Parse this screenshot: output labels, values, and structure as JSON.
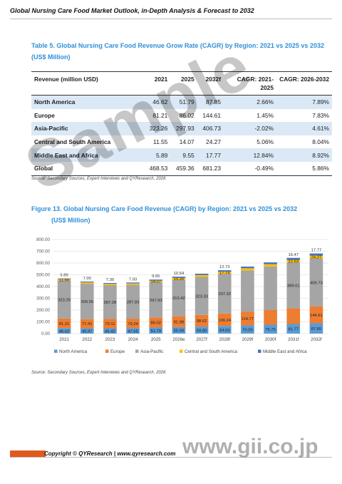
{
  "header": {
    "title": "Global Nursing Care Food Market Outlook, in-Depth Analysis & Forecast to 2032"
  },
  "table": {
    "caption_line1": "Table 5.   Global Nursing Care Food Revenue Grow Rate (CAGR) by Region: 2021 vs 2025 vs 2032",
    "caption_line2": "(US$ Million)",
    "headers": [
      "Revenue (million USD)",
      "2021",
      "2025",
      "2032f",
      "CAGR: 2021-2025",
      "CAGR: 2026-2032"
    ],
    "rows": [
      [
        "North America",
        "46.62",
        "51.79",
        "87.85",
        "2.66%",
        "7.89%"
      ],
      [
        "Europe",
        "81.21",
        "86.02",
        "144.61",
        "1.45%",
        "7.83%"
      ],
      [
        "Asia-Pacific",
        "323.26",
        "297.93",
        "406.73",
        "-2.02%",
        "4.61%"
      ],
      [
        "Central and South America",
        "11.55",
        "14.07",
        "24.27",
        "5.06%",
        "8.04%"
      ],
      [
        "Middle East and Africa",
        "5.89",
        "9.55",
        "17.77",
        "12.84%",
        "8.92%"
      ],
      [
        "Global",
        "468.53",
        "459.36",
        "681.23",
        "-0.49%",
        "5.86%"
      ]
    ],
    "source": "Source: Secondary Sources, Expert Interviews and QYResearch, 2026"
  },
  "figure": {
    "caption_line1": "Figure 13.   Global Nursing Care Food Revenue (CAGR) by Region: 2021 vs 2025 vs 2032",
    "caption_line2": "(US$ Million)",
    "source": "Source: Secondary Sources, Expert Interviews and QYResearch, 2026"
  },
  "chart_data": {
    "type": "bar",
    "stacked": true,
    "categories": [
      "2021",
      "2022",
      "2023",
      "2024",
      "2025",
      "2026e",
      "2027f",
      "2028f",
      "2029f",
      "2030f",
      "2031f",
      "2032f"
    ],
    "ylim": [
      0,
      800
    ],
    "yticks": [
      "0.00",
      "100.00",
      "200.00",
      "300.00",
      "400.00",
      "500.00",
      "600.00",
      "700.00",
      "800.00"
    ],
    "legend_position": "bottom",
    "series": [
      {
        "name": "North America",
        "color": "#5b9bd5",
        "values": [
          46.62,
          45.97,
          45.42,
          47.65,
          51.79,
          55.69,
          59.85,
          64.63,
          70.0,
          75.75,
          81.77,
          87.85
        ],
        "labels": [
          "46.62",
          "45.97",
          "45.42",
          "47.65",
          "51.79",
          "55.69",
          "59.85",
          "64.63",
          "70.00",
          "75.75",
          "81.77",
          "87.85"
        ]
      },
      {
        "name": "Europe",
        "color": "#ed7d31",
        "values": [
          81.21,
          77.41,
          79.11,
          79.24,
          86.02,
          91.98,
          98.62,
          106.24,
          114.77,
          124.15,
          134.0,
          144.61
        ],
        "labels": [
          "81.21",
          "77.41",
          "79.11",
          "79.24",
          "86.02",
          "91.98",
          "98.62",
          "106.24",
          "114.77",
          "",
          "",
          "144.61"
        ]
      },
      {
        "name": "Asia-Pacific",
        "color": "#a5a5a5",
        "values": [
          323.26,
          300.55,
          287.28,
          287.83,
          297.93,
          310.42,
          323.33,
          337.32,
          352.0,
          370.0,
          389.01,
          406.73
        ],
        "labels": [
          "323.26",
          "300.55",
          "287.28",
          "287.83",
          "297.93",
          "310.42",
          "323.33",
          "337.32",
          "",
          "",
          "389.01",
          "406.73"
        ]
      },
      {
        "name": "Central and South America",
        "color": "#ffc000",
        "values": [
          11.55,
          11.5,
          11.2,
          11.68,
          14.07,
          15.26,
          16.0,
          17.74,
          18.9,
          20.5,
          22.53,
          24.27
        ],
        "labels": [
          "11.55",
          "",
          "",
          "",
          "14.07",
          "15.26",
          "",
          "17.74",
          "",
          "",
          "22.53",
          "24.27"
        ]
      },
      {
        "name": "Middle East and Africa",
        "color": "#4472c4",
        "values": [
          5.89,
          7.0,
          7.3,
          7.93,
          9.55,
          10.64,
          11.5,
          12.73,
          13.8,
          15.0,
          16.47,
          17.77
        ],
        "labels": [
          "5.89",
          "7.00",
          "7.30",
          "7.93",
          "9.55",
          "10.64",
          "",
          "12.73",
          "",
          "",
          "16.47",
          "17.77"
        ]
      }
    ]
  },
  "footer": {
    "copyright": "Copyright © QYResearch | www.qyresearch.com"
  },
  "watermark": {
    "text": "Sample",
    "url": "www.gii.co.jp"
  }
}
